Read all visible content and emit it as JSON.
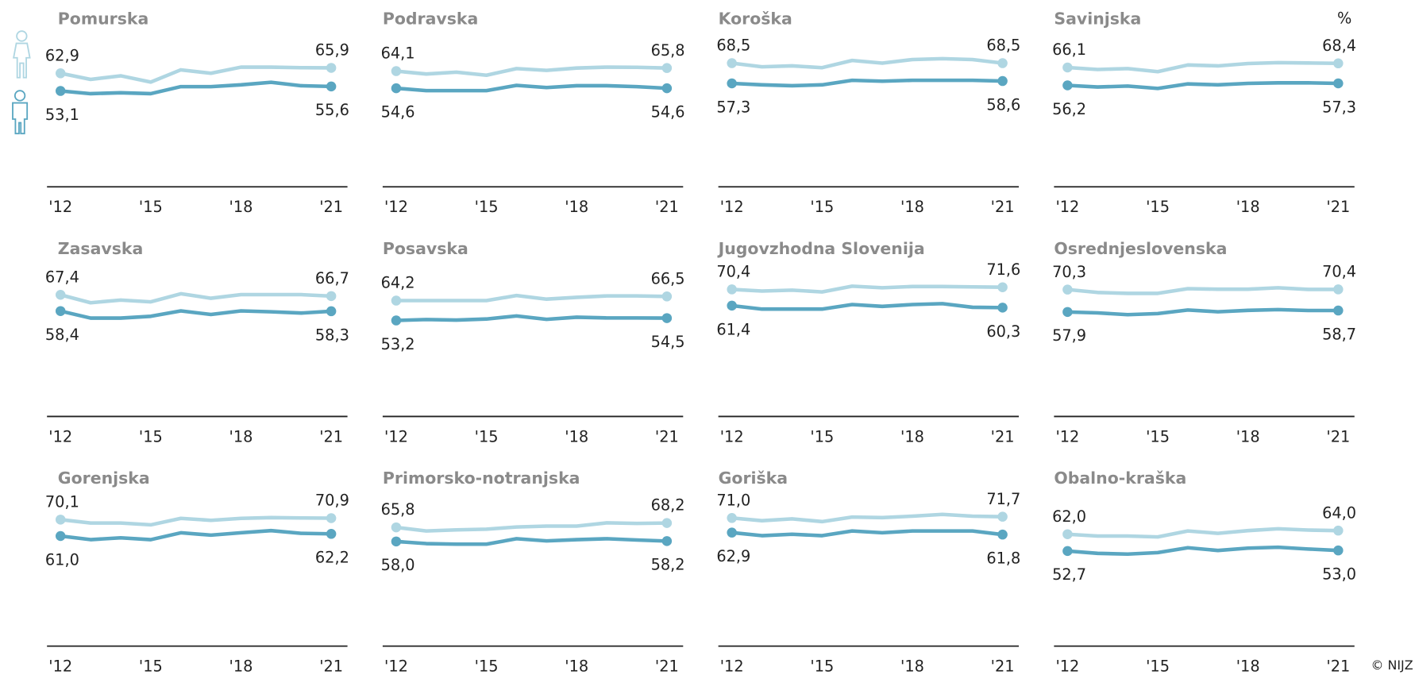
{
  "unit": "%",
  "credit": "© NIJZ",
  "chart_data": [
    {
      "type": "line",
      "title": "Pomurska",
      "categories": [
        "'12",
        null,
        null,
        "'15",
        null,
        null,
        "'18",
        null,
        null,
        "'21"
      ],
      "ylim": [
        0,
        100
      ],
      "series": [
        {
          "color": "#afd6e2",
          "values": [
            62.9,
            59.5,
            61.5,
            58.0,
            64.8,
            62.9,
            66.3,
            66.3,
            66.0,
            65.9
          ],
          "value_labels": [
            "62,9",
            null,
            null,
            null,
            null,
            null,
            null,
            null,
            null,
            "65,9"
          ]
        },
        {
          "color": "#5aa6c1",
          "values": [
            53.1,
            51.6,
            52.1,
            51.6,
            55.5,
            55.5,
            56.5,
            57.9,
            56.0,
            55.6
          ],
          "value_labels": [
            "53,1",
            null,
            null,
            null,
            null,
            null,
            null,
            null,
            null,
            "55,6"
          ]
        }
      ]
    },
    {
      "type": "line",
      "title": "Podravska",
      "categories": [
        "'12",
        null,
        null,
        "'15",
        null,
        null,
        "'18",
        null,
        null,
        "'21"
      ],
      "ylim": [
        0,
        100
      ],
      "series": [
        {
          "color": "#afd6e2",
          "values": [
            64.1,
            62.5,
            63.5,
            61.8,
            65.5,
            64.5,
            65.8,
            66.3,
            66.2,
            65.8
          ],
          "value_labels": [
            "64,1",
            null,
            null,
            null,
            null,
            null,
            null,
            null,
            null,
            "65,8"
          ]
        },
        {
          "color": "#5aa6c1",
          "values": [
            54.6,
            53.3,
            53.3,
            53.3,
            56.2,
            55.0,
            56.0,
            56.0,
            55.5,
            54.6
          ],
          "value_labels": [
            "54,6",
            null,
            null,
            null,
            null,
            null,
            null,
            null,
            null,
            "54,6"
          ]
        }
      ]
    },
    {
      "type": "line",
      "title": "Koroška",
      "categories": [
        "'12",
        null,
        null,
        "'15",
        null,
        null,
        "'18",
        null,
        null,
        "'21"
      ],
      "ylim": [
        0,
        100
      ],
      "series": [
        {
          "color": "#afd6e2",
          "values": [
            68.5,
            66.5,
            67.0,
            66.0,
            70.0,
            68.5,
            70.5,
            71.0,
            70.5,
            68.5
          ],
          "value_labels": [
            "68,5",
            null,
            null,
            null,
            null,
            null,
            null,
            null,
            null,
            "68,5"
          ]
        },
        {
          "color": "#5aa6c1",
          "values": [
            57.3,
            56.5,
            56.0,
            56.5,
            59.0,
            58.5,
            59.0,
            59.0,
            59.0,
            58.6
          ],
          "value_labels": [
            "57,3",
            null,
            null,
            null,
            null,
            null,
            null,
            null,
            null,
            "58,6"
          ]
        }
      ]
    },
    {
      "type": "line",
      "title": "Savinjska",
      "categories": [
        "'12",
        null,
        null,
        "'15",
        null,
        null,
        "'18",
        null,
        null,
        "'21"
      ],
      "ylim": [
        0,
        100
      ],
      "series": [
        {
          "color": "#afd6e2",
          "values": [
            66.1,
            65.0,
            65.5,
            63.8,
            67.5,
            67.0,
            68.3,
            68.8,
            68.6,
            68.4
          ],
          "value_labels": [
            "66,1",
            null,
            null,
            null,
            null,
            null,
            null,
            null,
            null,
            "68,4"
          ]
        },
        {
          "color": "#5aa6c1",
          "values": [
            56.2,
            55.3,
            55.8,
            54.5,
            57.0,
            56.5,
            57.3,
            57.6,
            57.6,
            57.3
          ],
          "value_labels": [
            "56,2",
            null,
            null,
            null,
            null,
            null,
            null,
            null,
            null,
            "57,3"
          ]
        }
      ]
    },
    {
      "type": "line",
      "title": "Zasavska",
      "categories": [
        "'12",
        null,
        null,
        "'15",
        null,
        null,
        "'18",
        null,
        null,
        "'21"
      ],
      "ylim": [
        0,
        100
      ],
      "series": [
        {
          "color": "#afd6e2",
          "values": [
            67.4,
            63.0,
            64.5,
            63.5,
            68.0,
            65.5,
            67.5,
            67.5,
            67.5,
            66.7
          ],
          "value_labels": [
            "67,4",
            null,
            null,
            null,
            null,
            null,
            null,
            null,
            null,
            "66,7"
          ]
        },
        {
          "color": "#5aa6c1",
          "values": [
            58.4,
            54.5,
            54.5,
            55.5,
            58.5,
            56.5,
            58.5,
            58.0,
            57.3,
            58.3
          ],
          "value_labels": [
            "58,4",
            null,
            null,
            null,
            null,
            null,
            null,
            null,
            null,
            "58,3"
          ]
        }
      ]
    },
    {
      "type": "line",
      "title": "Posavska",
      "categories": [
        "'12",
        null,
        null,
        "'15",
        null,
        null,
        "'18",
        null,
        null,
        "'21"
      ],
      "ylim": [
        0,
        100
      ],
      "series": [
        {
          "color": "#afd6e2",
          "values": [
            64.2,
            64.2,
            64.2,
            64.2,
            67.0,
            65.0,
            66.0,
            66.8,
            66.8,
            66.5
          ],
          "value_labels": [
            "64,2",
            null,
            null,
            null,
            null,
            null,
            null,
            null,
            null,
            "66,5"
          ]
        },
        {
          "color": "#5aa6c1",
          "values": [
            53.2,
            53.7,
            53.4,
            54.0,
            55.7,
            53.8,
            55.0,
            54.6,
            54.6,
            54.5
          ],
          "value_labels": [
            "53,2",
            null,
            null,
            null,
            null,
            null,
            null,
            null,
            null,
            "54,5"
          ]
        }
      ]
    },
    {
      "type": "line",
      "title": "Jugovzhodna Slovenija",
      "categories": [
        "'12",
        null,
        null,
        "'15",
        null,
        null,
        "'18",
        null,
        null,
        "'21"
      ],
      "ylim": [
        0,
        100
      ],
      "series": [
        {
          "color": "#afd6e2",
          "values": [
            70.4,
            69.5,
            70.0,
            69.0,
            72.2,
            71.3,
            72.0,
            72.0,
            71.8,
            71.6
          ],
          "value_labels": [
            "70,4",
            null,
            null,
            null,
            null,
            null,
            null,
            null,
            null,
            "71,6"
          ]
        },
        {
          "color": "#5aa6c1",
          "values": [
            61.4,
            59.5,
            59.5,
            59.5,
            62.0,
            61.0,
            62.0,
            62.5,
            60.5,
            60.3
          ],
          "value_labels": [
            "61,4",
            null,
            null,
            null,
            null,
            null,
            null,
            null,
            null,
            "60,3"
          ]
        }
      ]
    },
    {
      "type": "line",
      "title": "Osrednjeslovenska",
      "categories": [
        "'12",
        null,
        null,
        "'15",
        null,
        null,
        "'18",
        null,
        null,
        "'21"
      ],
      "ylim": [
        0,
        100
      ],
      "series": [
        {
          "color": "#afd6e2",
          "values": [
            70.3,
            68.7,
            68.2,
            68.2,
            70.8,
            70.5,
            70.5,
            71.3,
            70.4,
            70.4
          ],
          "value_labels": [
            "70,3",
            null,
            null,
            null,
            null,
            null,
            null,
            null,
            null,
            "70,4"
          ]
        },
        {
          "color": "#5aa6c1",
          "values": [
            57.9,
            57.4,
            56.4,
            57.0,
            59.0,
            58.0,
            58.8,
            59.2,
            58.7,
            58.7
          ],
          "value_labels": [
            "57,9",
            null,
            null,
            null,
            null,
            null,
            null,
            null,
            null,
            "58,7"
          ]
        }
      ]
    },
    {
      "type": "line",
      "title": "Gorenjska",
      "categories": [
        "'12",
        null,
        null,
        "'15",
        null,
        null,
        "'18",
        null,
        null,
        "'21"
      ],
      "ylim": [
        0,
        100
      ],
      "series": [
        {
          "color": "#afd6e2",
          "values": [
            70.1,
            68.2,
            68.2,
            67.2,
            70.8,
            69.7,
            70.8,
            71.2,
            71.0,
            70.9
          ],
          "value_labels": [
            "70,1",
            null,
            null,
            null,
            null,
            null,
            null,
            null,
            null,
            "70,9"
          ]
        },
        {
          "color": "#5aa6c1",
          "values": [
            61.0,
            59.0,
            60.0,
            59.0,
            62.8,
            61.5,
            62.8,
            64.0,
            62.5,
            62.2
          ],
          "value_labels": [
            "61,0",
            null,
            null,
            null,
            null,
            null,
            null,
            null,
            null,
            "62,2"
          ]
        }
      ]
    },
    {
      "type": "line",
      "title": "Primorsko-notranjska",
      "categories": [
        "'12",
        null,
        null,
        "'15",
        null,
        null,
        "'18",
        null,
        null,
        "'21"
      ],
      "ylim": [
        0,
        100
      ],
      "series": [
        {
          "color": "#afd6e2",
          "values": [
            65.8,
            63.8,
            64.4,
            64.8,
            66.0,
            66.5,
            66.5,
            68.3,
            68.0,
            68.2
          ],
          "value_labels": [
            "65,8",
            null,
            null,
            null,
            null,
            null,
            null,
            null,
            null,
            "68,2"
          ]
        },
        {
          "color": "#5aa6c1",
          "values": [
            58.0,
            56.8,
            56.5,
            56.5,
            59.5,
            58.3,
            59.0,
            59.5,
            58.8,
            58.2
          ],
          "value_labels": [
            "58,0",
            null,
            null,
            null,
            null,
            null,
            null,
            null,
            null,
            "58,2"
          ]
        }
      ]
    },
    {
      "type": "line",
      "title": "Goriška",
      "categories": [
        "'12",
        null,
        null,
        "'15",
        null,
        null,
        "'18",
        null,
        null,
        "'21"
      ],
      "ylim": [
        0,
        100
      ],
      "series": [
        {
          "color": "#afd6e2",
          "values": [
            71.0,
            69.5,
            70.5,
            69.0,
            71.5,
            71.2,
            72.0,
            73.0,
            72.0,
            71.7
          ],
          "value_labels": [
            "71,0",
            null,
            null,
            null,
            null,
            null,
            null,
            null,
            null,
            "71,7"
          ]
        },
        {
          "color": "#5aa6c1",
          "values": [
            62.9,
            61.2,
            62.0,
            61.2,
            63.8,
            62.8,
            63.8,
            63.8,
            63.8,
            61.8
          ],
          "value_labels": [
            "62,9",
            null,
            null,
            null,
            null,
            null,
            null,
            null,
            null,
            "61,8"
          ]
        }
      ]
    },
    {
      "type": "line",
      "title": "Obalno-kraška",
      "categories": [
        "'12",
        null,
        null,
        "'15",
        null,
        null,
        "'18",
        null,
        null,
        "'21"
      ],
      "ylim": [
        0,
        100
      ],
      "series": [
        {
          "color": "#afd6e2",
          "values": [
            62.0,
            61.0,
            61.0,
            60.5,
            63.8,
            62.5,
            64.0,
            65.0,
            64.3,
            64.0
          ],
          "value_labels": [
            "62,0",
            null,
            null,
            null,
            null,
            null,
            null,
            null,
            null,
            "64,0"
          ]
        },
        {
          "color": "#5aa6c1",
          "values": [
            52.7,
            51.4,
            51.0,
            51.8,
            54.5,
            53.0,
            54.3,
            54.8,
            53.8,
            53.0
          ],
          "value_labels": [
            "52,7",
            null,
            null,
            null,
            null,
            null,
            null,
            null,
            null,
            "53,0"
          ]
        }
      ]
    }
  ]
}
